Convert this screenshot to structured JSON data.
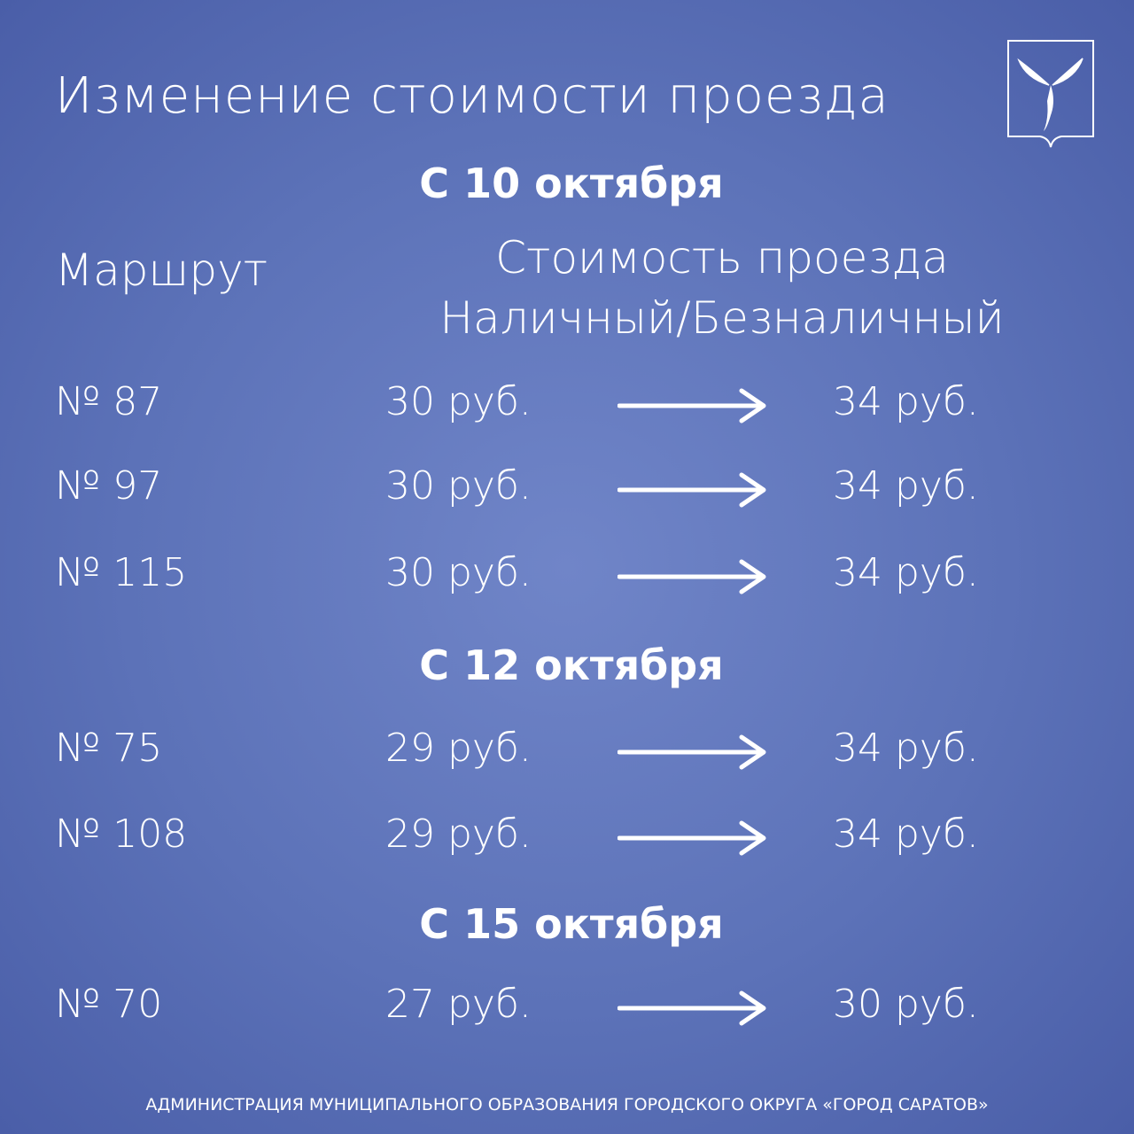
{
  "title": "Изменение стоимости проезда",
  "logo": {
    "name": "Saratov coat of arms",
    "icon": "coat-of-arms-sterlets"
  },
  "headers": {
    "route": "Маршрут",
    "price_line1": "Стоимость проезда",
    "price_line2": "Наличный/Безналичный"
  },
  "sections": [
    {
      "date": "С 10 октября",
      "rows": [
        {
          "route": "№ 87",
          "old": "30 руб.",
          "new": "34 руб."
        },
        {
          "route": "№ 97",
          "old": "30 руб.",
          "new": "34 руб."
        },
        {
          "route": "№ 115",
          "old": "30 руб.",
          "new": "34 руб."
        }
      ]
    },
    {
      "date": "С 12 октября",
      "rows": [
        {
          "route": "№ 75",
          "old": "29 руб.",
          "new": "34 руб."
        },
        {
          "route": "№ 108",
          "old": "29 руб.",
          "new": "34 руб."
        }
      ]
    },
    {
      "date": "С 15 октября",
      "rows": [
        {
          "route": "№ 70",
          "old": "27 руб.",
          "new": "30 руб."
        }
      ]
    }
  ],
  "footer": "АДМИНИСТРАЦИЯ МУНИЦИПАЛЬНОГО ОБРАЗОВАНИЯ ГОРОДСКОГО ОКРУГА «ГОРОД САРАТОВ»",
  "colors": {
    "background": "#5c72b8",
    "text": "#ffffff"
  }
}
